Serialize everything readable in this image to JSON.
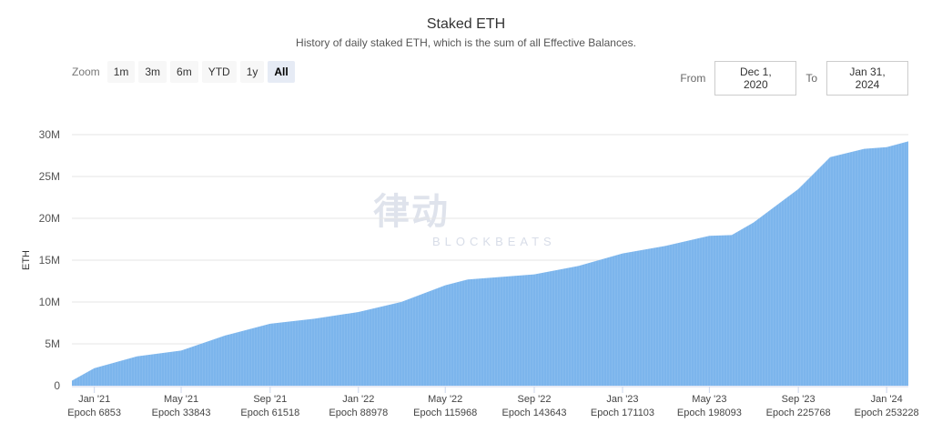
{
  "chart_data": {
    "type": "area",
    "title": "Staked ETH",
    "subtitle": "History of daily staked ETH, which is the sum of all Effective Balances.",
    "ylabel": "ETH",
    "ylim": [
      0,
      30000000
    ],
    "yticks": [
      "0",
      "5M",
      "10M",
      "15M",
      "20M",
      "25M",
      "30M"
    ],
    "xticks": [
      {
        "date": "2021-01-01",
        "label": "Jan '21",
        "epoch": "Epoch 6853"
      },
      {
        "date": "2021-05-01",
        "label": "May '21",
        "epoch": "Epoch 33843"
      },
      {
        "date": "2021-09-01",
        "label": "Sep '21",
        "epoch": "Epoch 61518"
      },
      {
        "date": "2022-01-01",
        "label": "Jan '22",
        "epoch": "Epoch 88978"
      },
      {
        "date": "2022-05-01",
        "label": "May '22",
        "epoch": "Epoch 115968"
      },
      {
        "date": "2022-09-01",
        "label": "Sep '22",
        "epoch": "Epoch 143643"
      },
      {
        "date": "2023-01-01",
        "label": "Jan '23",
        "epoch": "Epoch 171103"
      },
      {
        "date": "2023-05-01",
        "label": "May '23",
        "epoch": "Epoch 198093"
      },
      {
        "date": "2023-09-01",
        "label": "Sep '23",
        "epoch": "Epoch 225768"
      },
      {
        "date": "2024-01-01",
        "label": "Jan '24",
        "epoch": "Epoch 253228"
      }
    ],
    "xlim": [
      "2020-12-01",
      "2024-01-31"
    ],
    "grid": true,
    "color": "#7cb5ec",
    "series": [
      {
        "x": [
          "2020-12-01",
          "2021-01-01",
          "2021-03-01",
          "2021-05-01",
          "2021-07-01",
          "2021-09-01",
          "2021-11-01",
          "2022-01-01",
          "2022-03-01",
          "2022-05-01",
          "2022-06-01",
          "2022-09-01",
          "2022-11-01",
          "2023-01-01",
          "2023-03-01",
          "2023-04-15",
          "2023-05-01",
          "2023-06-01",
          "2023-07-01",
          "2023-09-01",
          "2023-10-15",
          "2023-12-01",
          "2024-01-01",
          "2024-01-31"
        ],
        "y": [
          600000,
          2100000,
          3500000,
          4200000,
          6000000,
          7400000,
          8000000,
          8800000,
          10000000,
          12000000,
          12700000,
          13300000,
          14300000,
          15800000,
          16700000,
          17600000,
          17900000,
          18000000,
          19500000,
          23500000,
          27300000,
          28300000,
          28500000,
          29200000
        ]
      }
    ]
  },
  "controls": {
    "zoom_label": "Zoom",
    "zoom_buttons": [
      "1m",
      "3m",
      "6m",
      "YTD",
      "1y",
      "All"
    ],
    "active_zoom": "All",
    "from_label": "From",
    "from_value": "Dec 1, 2020",
    "to_label": "To",
    "to_value": "Jan 31, 2024"
  },
  "watermark": {
    "text": "律动",
    "sub": "BLOCKBEATS"
  }
}
